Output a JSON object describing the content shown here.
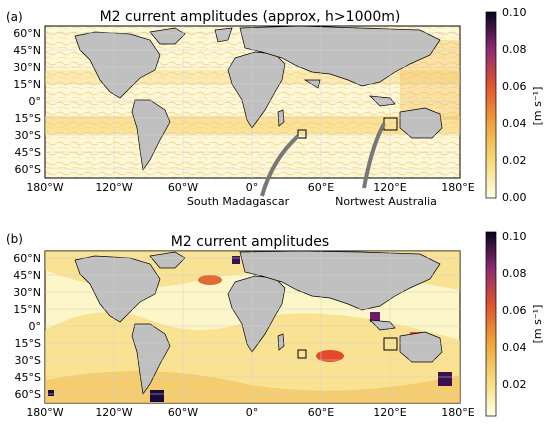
{
  "panels": [
    {
      "letter": "(a)",
      "title": "M2 current amplitudes (approx, h>1000m)",
      "lat_ticks": [
        "60°N",
        "45°N",
        "30°N",
        "15°N",
        "0°",
        "15°S",
        "30°S",
        "45°S",
        "60°S"
      ],
      "lon_ticks": [
        "180°W",
        "120°W",
        "60°W",
        "0°",
        "60°E",
        "120°E",
        "180°E"
      ],
      "colorbar": {
        "ticks": [
          "0.10",
          "0.08",
          "0.06",
          "0.04",
          "0.02",
          "0.00"
        ],
        "unit": "[m s⁻¹]"
      },
      "annotations": [
        "South Madagascar",
        "Nortwest Australia"
      ]
    },
    {
      "letter": "(b)",
      "title": "M2 current amplitudes",
      "lat_ticks": [
        "60°N",
        "45°N",
        "30°N",
        "15°N",
        "0°",
        "15°S",
        "30°S",
        "45°S",
        "60°S"
      ],
      "lon_ticks": [
        "180°W",
        "120°W",
        "60°W",
        "0°",
        "60°E",
        "120°E",
        "180°E"
      ],
      "colorbar": {
        "ticks": [
          "0.10",
          "0.08",
          "0.06",
          "0.04",
          "0.02"
        ],
        "unit": "[m s⁻¹]"
      }
    }
  ],
  "colors": {
    "land": "#c0c0c0",
    "ocean_low": "#fffce8",
    "ocean_mid": "#f5c23c",
    "ocean_high": "#e24a2b",
    "ocean_max": "#1a0a3c"
  }
}
